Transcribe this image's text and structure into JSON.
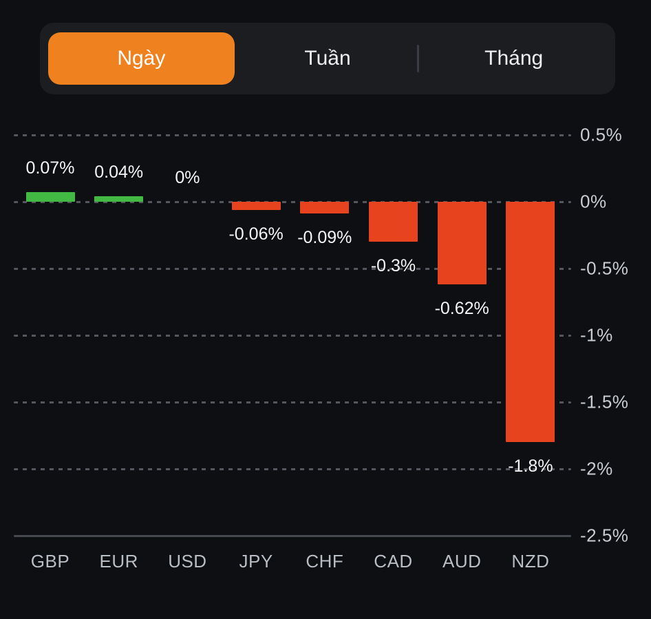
{
  "tabs": {
    "items": [
      {
        "label": "Ngày",
        "active": true
      },
      {
        "label": "Tuần",
        "active": false
      },
      {
        "label": "Tháng",
        "active": false
      }
    ]
  },
  "chart_data": {
    "type": "bar",
    "title": "",
    "categories": [
      "GBP",
      "EUR",
      "USD",
      "JPY",
      "CHF",
      "CAD",
      "AUD",
      "NZD"
    ],
    "values": [
      0.07,
      0.04,
      0,
      -0.06,
      -0.09,
      -0.3,
      -0.62,
      -1.8
    ],
    "value_labels": [
      "0.07%",
      "0.04%",
      "0%",
      "-0.06%",
      "-0.09%",
      "-0.3%",
      "-0.62%",
      "-1.8%"
    ],
    "unit": "%",
    "xlabel": "",
    "ylabel": "",
    "ylim": [
      -2.5,
      0.5
    ],
    "yticks": [
      {
        "value": 0.5,
        "label": "0.5%"
      },
      {
        "value": 0,
        "label": "0%"
      },
      {
        "value": -0.5,
        "label": "-0.5%"
      },
      {
        "value": -1,
        "label": "-1%"
      },
      {
        "value": -1.5,
        "label": "-1.5%"
      },
      {
        "value": -2,
        "label": "-2%"
      },
      {
        "value": -2.5,
        "label": "-2.5%",
        "axis": true
      }
    ],
    "grid": "horizontal-dashed",
    "legend": "none",
    "axis_side": "right",
    "colors": {
      "positive": "#42b942",
      "negative": "#e8431f",
      "grid": "#54575d",
      "axis_line": "#46494f",
      "tick_label": "#c9ccd2",
      "value_label": "#f4f5f7",
      "category_label": "#b9bdc4"
    }
  },
  "theme": {
    "background": "#0d0f13",
    "tab_bar_bg": "#1b1d21",
    "active_tab_bg": "#ef811f",
    "active_tab_text": "#ffffff",
    "inactive_tab_text": "#edeff1",
    "divider": "#393d45"
  }
}
